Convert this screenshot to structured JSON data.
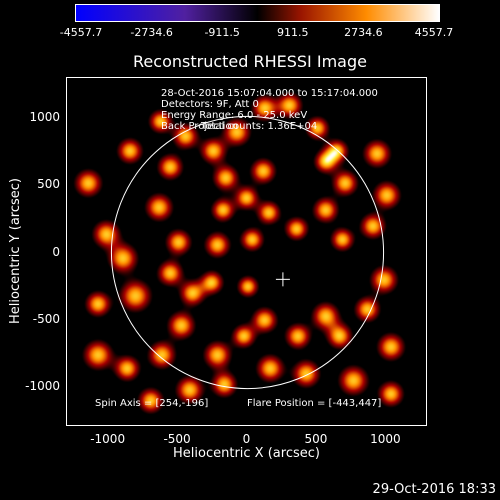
{
  "colorbar": {
    "labels": [
      "-4557.7",
      "-2734.6",
      "-911.5",
      "911.5",
      "2734.6",
      "4557.7"
    ],
    "colors": [
      "#0000ff",
      "#5020a0",
      "#000000",
      "#9a1500",
      "#ff8c00",
      "#ffffff"
    ]
  },
  "plot": {
    "title": "Reconstructed RHESSI Image",
    "xlabel": "Heliocentric X (arcsec)",
    "ylabel": "Heliocentric Y (arcsec)",
    "xticks": [
      "-1000",
      "-500",
      "0",
      "500",
      "1000"
    ],
    "yticks": [
      "1000",
      "500",
      "0",
      "-500",
      "-1000"
    ],
    "xlim": [
      -1300,
      1300
    ],
    "ylim": [
      -1300,
      1300
    ],
    "solar_radius_arcsec": 980,
    "flare_marker": "plus",
    "dark_box": {
      "center": [
        255,
        -200
      ],
      "size": 170
    }
  },
  "info": {
    "line1": "28-Oct-2016 15:07:04.000 to 15:17:04.000",
    "line2": "Detectors: 9F, Att 0",
    "line3": "Energy Range: 6.0 - 25.0 keV",
    "line4a": "Back Projection",
    "line4b": "Total counts: 1.36E+04",
    "spin_axis": "Spin Axis = [254,-196]",
    "flare_position": "Flare Position = [-443,447]"
  },
  "timestamp": "29-Oct-2016 18:33",
  "blobs": [
    [
      -1150,
      520,
      130
    ],
    [
      -1020,
      140,
      130
    ],
    [
      -900,
      -40,
      140
    ],
    [
      -810,
      -320,
      150
    ],
    [
      -1080,
      -380,
      120
    ],
    [
      -1080,
      -760,
      140
    ],
    [
      -870,
      -860,
      120
    ],
    [
      -620,
      -760,
      130
    ],
    [
      -480,
      -540,
      130
    ],
    [
      -630,
      980,
      110
    ],
    [
      -450,
      870,
      120
    ],
    [
      -560,
      640,
      120
    ],
    [
      -640,
      340,
      130
    ],
    [
      -500,
      80,
      120
    ],
    [
      -560,
      -150,
      120
    ],
    [
      -400,
      -300,
      120
    ],
    [
      -260,
      -220,
      110
    ],
    [
      -220,
      60,
      120
    ],
    [
      -180,
      320,
      110
    ],
    [
      -160,
      560,
      120
    ],
    [
      -250,
      760,
      120
    ],
    [
      -80,
      900,
      130
    ],
    [
      120,
      1080,
      120
    ],
    [
      300,
      1100,
      120
    ],
    [
      500,
      930,
      110
    ],
    [
      640,
      760,
      110
    ],
    [
      110,
      610,
      120
    ],
    [
      -10,
      410,
      110
    ],
    [
      150,
      300,
      110
    ],
    [
      350,
      180,
      110
    ],
    [
      560,
      320,
      120
    ],
    [
      700,
      520,
      120
    ],
    [
      930,
      740,
      130
    ],
    [
      1000,
      430,
      130
    ],
    [
      900,
      200,
      120
    ],
    [
      980,
      -200,
      130
    ],
    [
      860,
      -420,
      120
    ],
    [
      1030,
      -700,
      130
    ],
    [
      560,
      -470,
      130
    ],
    [
      660,
      -620,
      120
    ],
    [
      360,
      -620,
      120
    ],
    [
      120,
      -500,
      120
    ],
    [
      -30,
      -620,
      110
    ],
    [
      -220,
      -760,
      130
    ],
    [
      -420,
      -1020,
      130
    ],
    [
      -170,
      -980,
      120
    ],
    [
      160,
      -860,
      130
    ],
    [
      420,
      -900,
      130
    ],
    [
      760,
      -950,
      140
    ],
    [
      1030,
      -1050,
      120
    ],
    [
      -700,
      -1100,
      120
    ],
    [
      -850,
      760,
      120
    ],
    [
      560,
      680,
      110
    ],
    [
      680,
      100,
      110
    ],
    [
      30,
      100,
      110
    ],
    [
      0,
      -250,
      100
    ]
  ]
}
